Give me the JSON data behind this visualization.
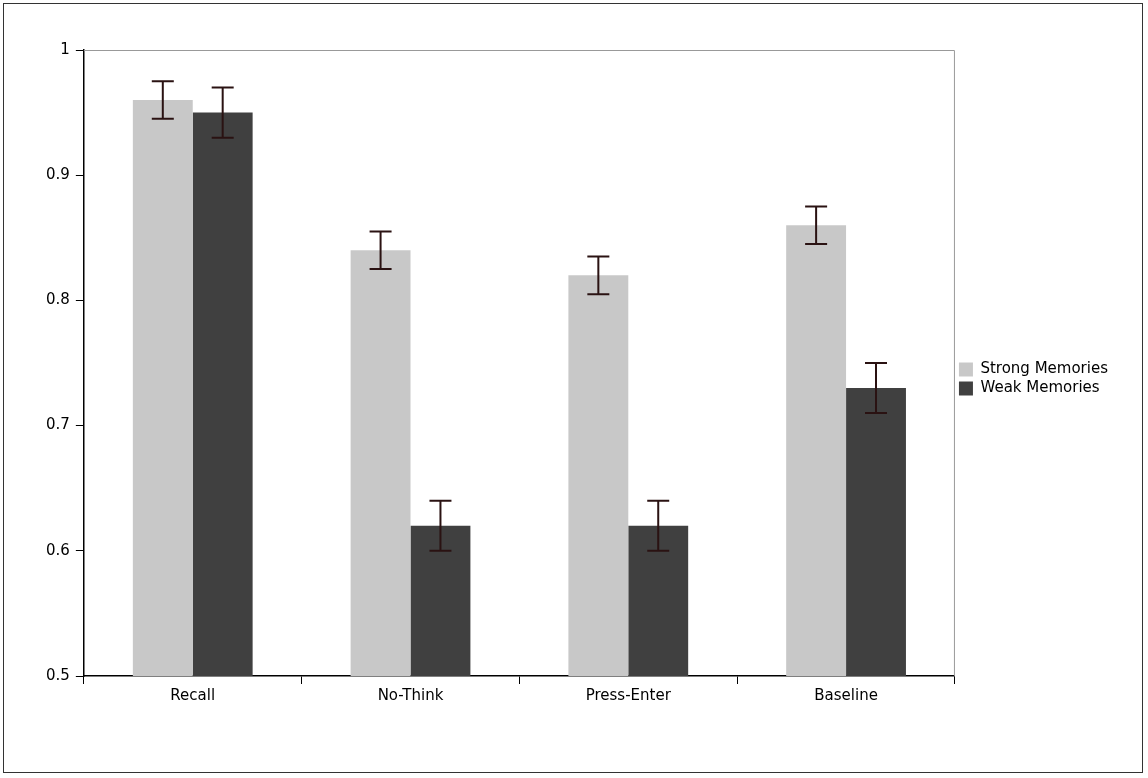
{
  "chart_data": {
    "type": "bar",
    "categories": [
      "Recall",
      "No-Think",
      "Press-Enter",
      "Baseline"
    ],
    "series": [
      {
        "name": "Strong Memories",
        "color": "#c8c8c8",
        "values": [
          0.96,
          0.84,
          0.82,
          0.86
        ],
        "errors": [
          0.015,
          0.015,
          0.015,
          0.015
        ]
      },
      {
        "name": "Weak Memories",
        "color": "#404040",
        "values": [
          0.95,
          0.62,
          0.62,
          0.73
        ],
        "errors": [
          0.02,
          0.02,
          0.02,
          0.02
        ]
      }
    ],
    "ylim": [
      0.5,
      1
    ],
    "yticks": [
      0.5,
      0.6,
      0.7,
      0.8,
      0.9,
      1
    ],
    "grid": false,
    "legend": "right"
  }
}
